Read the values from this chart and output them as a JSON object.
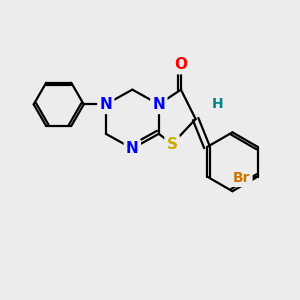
{
  "background_color": "#ececec",
  "bond_color": "#000000",
  "bond_width": 1.6,
  "atom_colors": {
    "N": "#0000ff",
    "O": "#ff0000",
    "S": "#ccaa00",
    "Br": "#cc7700",
    "H": "#008888",
    "C": "#000000"
  },
  "font_size_atom": 11,
  "font_size_br": 10
}
